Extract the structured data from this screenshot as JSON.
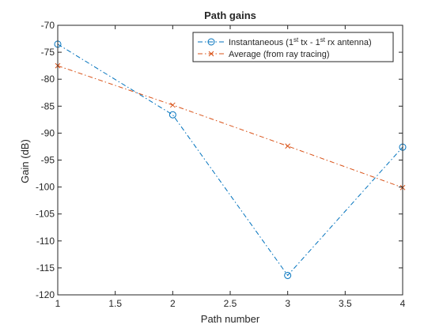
{
  "chart_data": {
    "type": "line",
    "title": "Path gains",
    "xlabel": "Path number",
    "ylabel": "Gain (dB)",
    "xlim": [
      1,
      4
    ],
    "ylim": [
      -120,
      -70
    ],
    "xticks": [
      1,
      1.5,
      2,
      2.5,
      3,
      3.5,
      4
    ],
    "xtick_labels": [
      "1",
      "1.5",
      "2",
      "2.5",
      "3",
      "3.5",
      "4"
    ],
    "yticks": [
      -70,
      -75,
      -80,
      -85,
      -90,
      -95,
      -100,
      -105,
      -110,
      -115,
      -120
    ],
    "ytick_labels": [
      "-70",
      "-75",
      "-80",
      "-85",
      "-90",
      "-95",
      "-100",
      "-105",
      "-110",
      "-115",
      "-120"
    ],
    "grid": false,
    "legend_position": "top-right",
    "series": [
      {
        "name_parts": [
          "Instantaneous (1",
          "st",
          " tx - 1",
          "st",
          " rx antenna)"
        ],
        "x": [
          1,
          2,
          3,
          4
        ],
        "y": [
          -73.5,
          -86.6,
          -116.4,
          -92.6
        ],
        "color": "#0072BD",
        "marker": "circle",
        "line_style": "dash-dot"
      },
      {
        "name": "Average (from ray tracing)",
        "x": [
          1,
          2,
          3,
          4
        ],
        "y": [
          -77.5,
          -84.8,
          -92.4,
          -100.1
        ],
        "color": "#D95319",
        "marker": "x",
        "line_style": "dash-dot"
      }
    ]
  }
}
